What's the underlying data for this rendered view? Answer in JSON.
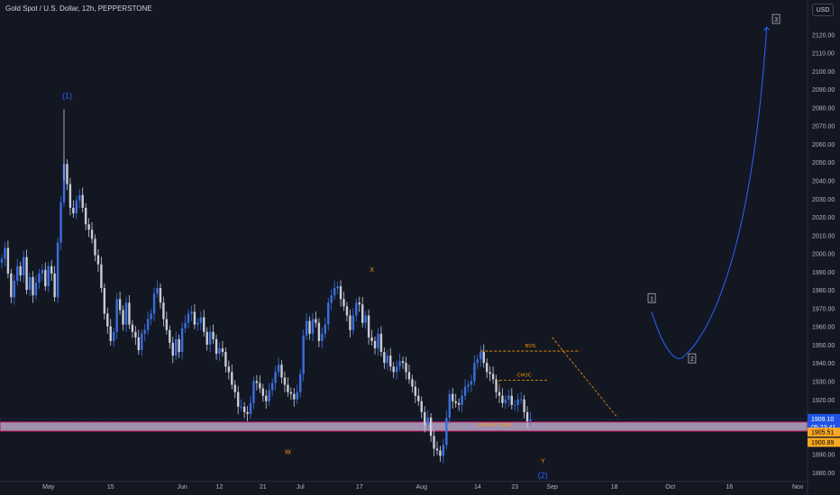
{
  "header": {
    "title": "Gold Spot / U.S. Dollar, 12h, PEPPERSTONE",
    "currency": "USD"
  },
  "colors": {
    "background": "#131722",
    "bull": "#3a6fe0",
    "bear": "#c9ccd6",
    "wave_blue": "#2962ff",
    "wave_orange": "#ff9800",
    "zone_fill": "#b9a7c8",
    "zone_border": "#c2185b",
    "price_badge": "#1e53e5",
    "level_badge": "#f9a825",
    "axis_text": "#b2b5be"
  },
  "chart_data": {
    "type": "candlestick",
    "title": "Gold Spot / U.S. Dollar, 12h, PEPPERSTONE",
    "currency": "USD",
    "ylim": [
      1875,
      2131
    ],
    "y_ticks": [
      2120,
      2110,
      2100,
      2090,
      2080,
      2070,
      2060,
      2050,
      2040,
      2030,
      2020,
      2010,
      2000,
      1990,
      1980,
      1970,
      1960,
      1950,
      1940,
      1930,
      1920,
      1890,
      1880
    ],
    "y_tick_labels": [
      "2120.00",
      "2110.00",
      "2100.00",
      "2090.00",
      "2080.00",
      "2070.00",
      "2060.00",
      "2050.00",
      "2040.00",
      "2030.00",
      "2020.00",
      "2010.00",
      "2000.00",
      "1990.00",
      "1980.00",
      "1970.00",
      "1960.00",
      "1950.00",
      "1940.00",
      "1930.00",
      "1920.00",
      "1890.00",
      "1880.00"
    ],
    "x_ticks": [
      {
        "label": "May",
        "i": 15
      },
      {
        "label": "15",
        "i": 35
      },
      {
        "label": "Jun",
        "i": 58
      },
      {
        "label": "12",
        "i": 70
      },
      {
        "label": "21",
        "i": 84
      },
      {
        "label": "Jul",
        "i": 96
      },
      {
        "label": "17",
        "i": 115
      },
      {
        "label": "Aug",
        "i": 135
      },
      {
        "label": "14",
        "i": 153
      },
      {
        "label": "23",
        "i": 165
      },
      {
        "label": "Sep",
        "i": 177
      },
      {
        "label": "18",
        "i": 197
      },
      {
        "label": "Oct",
        "i": 215
      },
      {
        "label": "16",
        "i": 234
      },
      {
        "label": "Nov",
        "i": 256
      }
    ],
    "closes": [
      1997,
      2003,
      1989,
      1976,
      1985,
      1993,
      1988,
      1998,
      1980,
      1987,
      1977,
      1984,
      1989,
      1991,
      1982,
      1993,
      1989,
      1976,
      2006,
      2028,
      2049,
      2038,
      2025,
      2022,
      2029,
      2032,
      2025,
      2016,
      2013,
      2008,
      1999,
      1994,
      1981,
      1967,
      1960,
      1952,
      1957,
      1975,
      1969,
      1961,
      1973,
      1961,
      1957,
      1954,
      1947,
      1956,
      1958,
      1964,
      1967,
      1978,
      1981,
      1973,
      1964,
      1958,
      1951,
      1944,
      1953,
      1946,
      1959,
      1962,
      1967,
      1968,
      1961,
      1962,
      1965,
      1957,
      1950,
      1957,
      1953,
      1945,
      1948,
      1946,
      1938,
      1935,
      1928,
      1924,
      1916,
      1916,
      1913,
      1912,
      1918,
      1930,
      1929,
      1926,
      1922,
      1919,
      1925,
      1929,
      1935,
      1939,
      1932,
      1928,
      1924,
      1923,
      1920,
      1924,
      1934,
      1955,
      1963,
      1956,
      1964,
      1962,
      1952,
      1956,
      1961,
      1973,
      1977,
      1981,
      1982,
      1975,
      1971,
      1966,
      1958,
      1966,
      1973,
      1972,
      1962,
      1966,
      1954,
      1952,
      1948,
      1956,
      1946,
      1940,
      1944,
      1938,
      1935,
      1938,
      1941,
      1940,
      1935,
      1931,
      1927,
      1922,
      1919,
      1913,
      1906,
      1910,
      1900,
      1893,
      1892,
      1889,
      1895,
      1910,
      1923,
      1919,
      1918,
      1917,
      1922,
      1927,
      1928,
      1930,
      1940,
      1942,
      1946,
      1940,
      1935,
      1934,
      1931,
      1924,
      1922,
      1918,
      1920,
      1922,
      1917,
      1917,
      1920,
      1920,
      1913,
      1908,
      1909.1
    ],
    "last_price": "1909.10",
    "countdown": "05:23:41",
    "levels": [
      {
        "price": 1905.51,
        "label": "1905.51"
      },
      {
        "price": 1900.89,
        "label": "1900.89"
      }
    ],
    "supply_zone": {
      "label": "SUPPLY ZONE",
      "top": 1907.6,
      "bottom": 1902.6
    },
    "wave_labels_blue": [
      {
        "text": "(1)",
        "i": 21,
        "price": 2085
      },
      {
        "text": "(2)",
        "i": 174,
        "price": 1877
      }
    ],
    "wave_labels_orange": [
      {
        "text": "W",
        "i": 92,
        "price": 1890
      },
      {
        "text": "X",
        "i": 119,
        "price": 1990
      },
      {
        "text": "Y",
        "i": 174,
        "price": 1885
      }
    ],
    "projection_labels": [
      {
        "text": "1",
        "i": 227,
        "price": 1975
      },
      {
        "text": "2",
        "i": 240,
        "price": 1942
      },
      {
        "text": "3",
        "i": 267,
        "price": 2128
      }
    ],
    "annotations": [
      {
        "text": "BOS",
        "y": 1946.5,
        "i_start": 154,
        "i_end": 186
      },
      {
        "text": "CHOC",
        "y": 1930.5,
        "i_start": 160,
        "i_end": 176
      }
    ]
  }
}
